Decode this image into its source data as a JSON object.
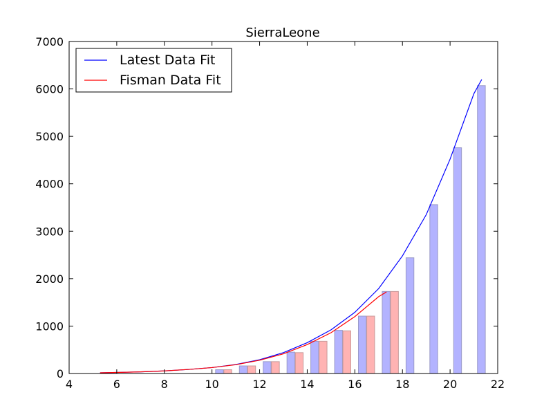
{
  "chart_data": {
    "type": "bar",
    "title": "SierraLeone",
    "xlabel": "",
    "ylabel": "",
    "xlim": [
      4,
      22
    ],
    "ylim": [
      0,
      7000
    ],
    "x_ticks": [
      4,
      6,
      8,
      10,
      12,
      14,
      16,
      18,
      20,
      22
    ],
    "y_ticks": [
      0,
      1000,
      2000,
      3000,
      4000,
      5000,
      6000,
      7000
    ],
    "grid": false,
    "legend_position": "top-left",
    "series": [
      {
        "kind": "bar",
        "color": "#b3b3ff",
        "edge_color": "#9a9ac8",
        "bar_width": 0.33,
        "x": [
          10.15,
          11.15,
          12.15,
          13.15,
          14.15,
          15.15,
          16.15,
          17.15,
          18.15,
          19.15,
          20.15,
          21.15
        ],
        "values": [
          80,
          160,
          250,
          450,
          680,
          910,
          1210,
          1730,
          2440,
          3560,
          4760,
          6070
        ]
      },
      {
        "kind": "bar",
        "color": "#ffb3b3",
        "edge_color": "#c89a9a",
        "bar_width": 0.33,
        "x": [
          10.5,
          11.5,
          12.5,
          13.5,
          14.5,
          15.5,
          16.5,
          17.5
        ],
        "values": [
          80,
          160,
          250,
          440,
          680,
          900,
          1210,
          1730
        ]
      },
      {
        "kind": "line",
        "name": "Latest Data Fit",
        "color": "#0000ff",
        "x": [
          5.3,
          6,
          7,
          8,
          9,
          10,
          11,
          12,
          13,
          14,
          15,
          16,
          17,
          18,
          19,
          20,
          21,
          21.33
        ],
        "values": [
          15,
          22,
          35,
          55,
          85,
          125,
          190,
          290,
          440,
          650,
          920,
          1290,
          1790,
          2480,
          3350,
          4520,
          5900,
          6200
        ]
      },
      {
        "kind": "line",
        "name": "Fisman Data Fit",
        "color": "#ff0000",
        "x": [
          5.3,
          6,
          7,
          8,
          9,
          10,
          11,
          12,
          13,
          14,
          15,
          16,
          17,
          17.33
        ],
        "values": [
          15,
          22,
          35,
          55,
          85,
          125,
          185,
          280,
          415,
          610,
          860,
          1200,
          1620,
          1720
        ]
      }
    ]
  }
}
